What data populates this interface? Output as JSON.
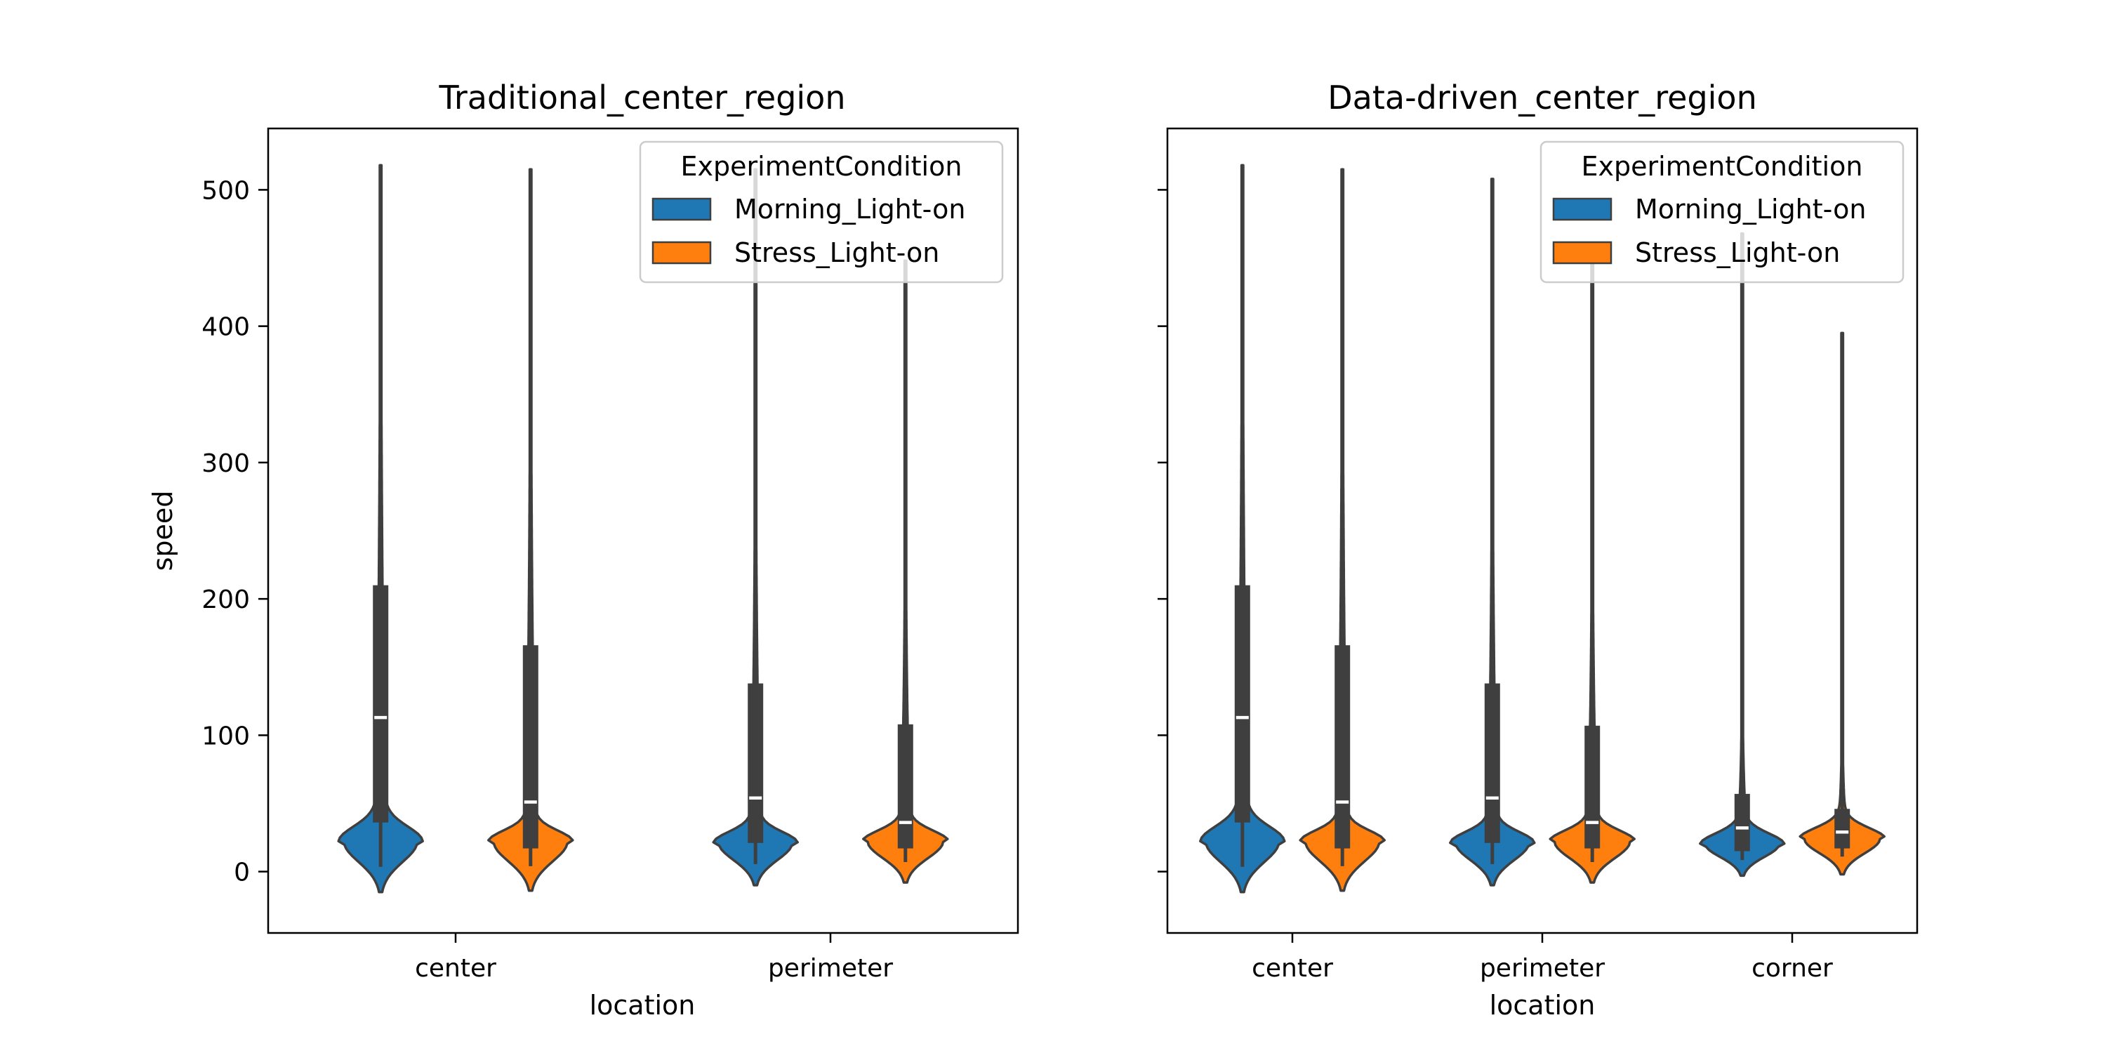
{
  "chart_data": [
    {
      "type": "violin",
      "title": "Traditional_center_region",
      "xlabel": "location",
      "ylabel": "speed",
      "ylim": [
        -45,
        545
      ],
      "yticks": [
        "0",
        "100",
        "200",
        "300",
        "400",
        "500"
      ],
      "categories": [
        "center",
        "perimeter"
      ],
      "legend": {
        "title": "ExperimentCondition",
        "placement": "top-right"
      },
      "series": [
        {
          "name": "Morning_Light-on",
          "color": "#1f77b4",
          "groups": [
            {
              "category": "center",
              "min": -15,
              "max": 518,
              "q1": 36,
              "median": 113,
              "q3": 210,
              "whisker_high": 448,
              "mode": 22
            },
            {
              "category": "perimeter",
              "min": -10,
              "max": 515,
              "q1": 21,
              "median": 54,
              "q3": 138,
              "whisker_high": 335,
              "mode": 21
            }
          ]
        },
        {
          "name": "Stress_Light-on",
          "color": "#ff7f0e",
          "groups": [
            {
              "category": "center",
              "min": -14,
              "max": 515,
              "q1": 17,
              "median": 51,
              "q3": 166,
              "whisker_high": 370,
              "mode": 22
            },
            {
              "category": "perimeter",
              "min": -8,
              "max": 448,
              "q1": 17,
              "median": 36,
              "q3": 108,
              "whisker_high": 220,
              "mode": 22
            }
          ]
        }
      ]
    },
    {
      "type": "violin",
      "title": "Data-driven_center_region",
      "xlabel": "location",
      "ylabel": "",
      "ylim": [
        -45,
        545
      ],
      "categories": [
        "center",
        "perimeter",
        "corner"
      ],
      "legend": {
        "title": "ExperimentCondition",
        "placement": "top-right"
      },
      "series": [
        {
          "name": "Morning_Light-on",
          "color": "#1f77b4",
          "groups": [
            {
              "category": "center",
              "min": -15,
              "max": 518,
              "q1": 36,
              "median": 113,
              "q3": 210,
              "whisker_high": 448,
              "mode": 22
            },
            {
              "category": "perimeter",
              "min": -10,
              "max": 508,
              "q1": 21,
              "median": 54,
              "q3": 138,
              "whisker_high": 335,
              "mode": 21
            },
            {
              "category": "corner",
              "min": -3,
              "max": 468,
              "q1": 15,
              "median": 32,
              "q3": 57,
              "whisker_high": 110,
              "mode": 20
            }
          ]
        },
        {
          "name": "Stress_Light-on",
          "color": "#ff7f0e",
          "groups": [
            {
              "category": "center",
              "min": -14,
              "max": 515,
              "q1": 17,
              "median": 51,
              "q3": 166,
              "whisker_high": 370,
              "mode": 22
            },
            {
              "category": "perimeter",
              "min": -8,
              "max": 448,
              "q1": 17,
              "median": 36,
              "q3": 107,
              "whisker_high": 220,
              "mode": 22
            },
            {
              "category": "corner",
              "min": -2,
              "max": 395,
              "q1": 17,
              "median": 29,
              "q3": 46,
              "whisker_high": 88,
              "mode": 24
            }
          ]
        }
      ]
    }
  ]
}
